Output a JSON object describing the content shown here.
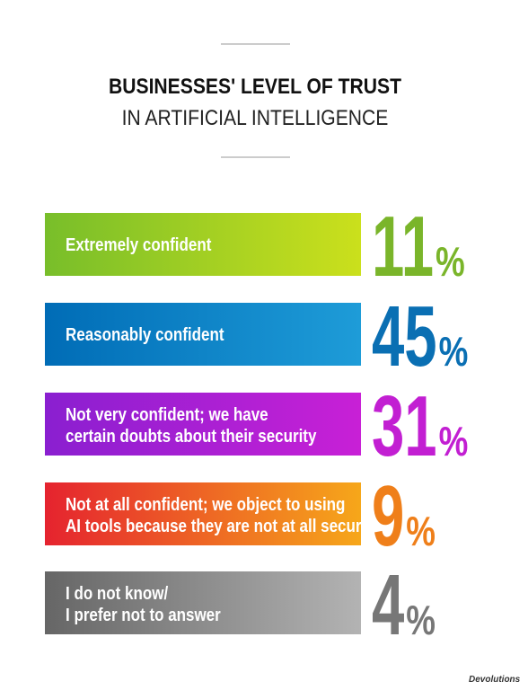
{
  "header": {
    "title_line1": "BUSINESSES' LEVEL OF TRUST",
    "title_line2": "IN ARTIFICIAL INTELLIGENCE"
  },
  "items": [
    {
      "label": [
        "Extremely confident"
      ],
      "value": 11,
      "unit": "%"
    },
    {
      "label": [
        "Reasonably confident"
      ],
      "value": 45,
      "unit": "%"
    },
    {
      "label": [
        "Not very confident; we have",
        "certain doubts about their security"
      ],
      "value": 31,
      "unit": "%"
    },
    {
      "label": [
        "Not at all confident; we object to using",
        "AI tools because they are not at all secure"
      ],
      "value": 9,
      "unit": "%"
    },
    {
      "label": [
        "I do not know/",
        "I prefer not to answer"
      ],
      "value": 4,
      "unit": "%"
    }
  ],
  "brand": "Devolutions"
}
